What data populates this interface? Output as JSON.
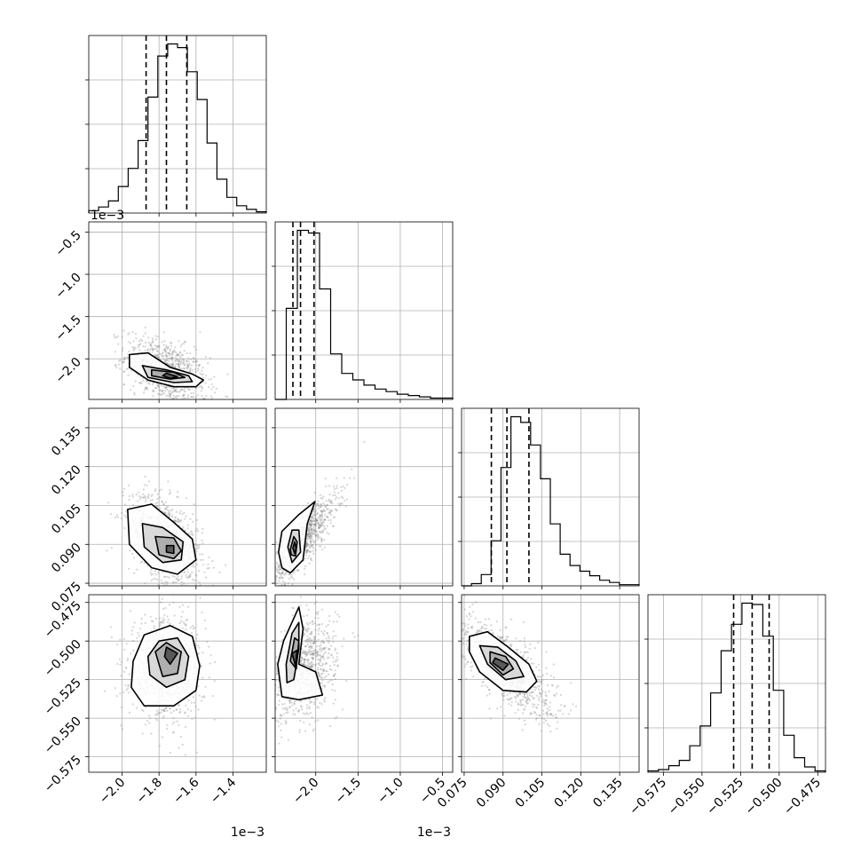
{
  "chart_data": {
    "type": "corner",
    "grid": true,
    "params": [
      {
        "ticks": [
          -2.0,
          -1.8,
          -1.6,
          -1.4
        ],
        "tick_labels": [
          "−2.0",
          "−1.8",
          "−1.6",
          "−1.4"
        ],
        "range": [
          -2.18,
          -1.22
        ],
        "offset_label": "1e−3",
        "quantiles": [
          -1.87,
          -1.76,
          -1.65
        ]
      },
      {
        "ticks": [
          -2.0,
          -1.5,
          -1.0,
          -0.5
        ],
        "tick_labels": [
          "−2.0",
          "−1.5",
          "−1.0",
          "−0.5"
        ],
        "range": [
          -2.48,
          -0.38
        ],
        "offset_label": "1e−3",
        "quantiles": [
          -2.27,
          -2.18,
          -2.02
        ]
      },
      {
        "ticks": [
          0.075,
          0.09,
          0.105,
          0.12,
          0.135
        ],
        "tick_labels": [
          "0.075",
          "0.090",
          "0.105",
          "0.120",
          "0.135"
        ],
        "range": [
          0.074,
          0.1425
        ],
        "offset_label": "",
        "quantiles": [
          0.0855,
          0.0915,
          0.1
        ]
      },
      {
        "ticks": [
          -0.575,
          -0.55,
          -0.525,
          -0.5,
          -0.475
        ],
        "tick_labels": [
          "−0.575",
          "−0.550",
          "−0.525",
          "−0.500",
          "−0.475"
        ],
        "range": [
          -0.585,
          -0.47
        ],
        "offset_label": "",
        "quantiles": [
          -0.5295,
          -0.5175,
          -0.5065
        ]
      }
    ],
    "histograms": [
      {
        "param": 0,
        "counts": [
          2,
          5,
          10,
          22,
          37,
          60,
          96,
          130,
          140,
          137,
          117,
          94,
          58,
          28,
          13,
          6,
          3,
          1
        ]
      },
      {
        "param": 1,
        "counts": [
          0,
          70,
          130,
          128,
          85,
          35,
          20,
          15,
          11,
          8,
          6,
          4,
          3,
          2,
          1,
          1
        ]
      },
      {
        "param": 2,
        "counts": [
          0,
          2,
          10,
          40,
          105,
          150,
          145,
          125,
          95,
          55,
          28,
          18,
          13,
          9,
          5,
          3,
          1,
          1
        ]
      },
      {
        "param": 3,
        "counts": [
          1,
          2,
          5,
          9,
          20,
          35,
          60,
          92,
          112,
          128,
          127,
          103,
          62,
          28,
          11,
          4,
          1
        ]
      }
    ],
    "scatter": [
      {
        "pair": [
          0,
          1
        ],
        "mean": [
          -1.76,
          -2.15
        ],
        "sd": [
          0.11,
          0.2
        ],
        "corr": -0.45
      },
      {
        "pair": [
          0,
          2
        ],
        "mean": [
          -1.76,
          0.0915
        ],
        "sd": [
          0.1,
          0.009
        ],
        "corr": -0.45
      },
      {
        "pair": [
          1,
          2
        ],
        "mean": [
          -2.15,
          0.0915
        ],
        "sd": [
          0.2,
          0.009
        ],
        "corr": 0.85
      },
      {
        "pair": [
          0,
          3
        ],
        "mean": [
          -1.76,
          -0.5175
        ],
        "sd": [
          0.1,
          0.016
        ],
        "corr": 0.0
      },
      {
        "pair": [
          1,
          3
        ],
        "mean": [
          -2.15,
          -0.5175
        ],
        "sd": [
          0.2,
          0.016
        ],
        "corr": 0.3
      },
      {
        "pair": [
          2,
          3
        ],
        "mean": [
          0.0915,
          -0.5175
        ],
        "sd": [
          0.009,
          0.016
        ],
        "corr": -0.7
      }
    ],
    "contours": [
      {
        "pair": [
          0,
          1
        ],
        "levels": [
          [
            [
              -1.96,
              -1.95
            ],
            [
              -1.86,
              -1.93
            ],
            [
              -1.74,
              -2.1
            ],
            [
              -1.62,
              -2.18
            ],
            [
              -1.56,
              -2.25
            ],
            [
              -1.6,
              -2.33
            ],
            [
              -1.72,
              -2.33
            ],
            [
              -1.86,
              -2.25
            ],
            [
              -1.96,
              -2.1
            ]
          ],
          [
            [
              -1.89,
              -2.08
            ],
            [
              -1.76,
              -2.13
            ],
            [
              -1.64,
              -2.2
            ],
            [
              -1.62,
              -2.27
            ],
            [
              -1.72,
              -2.28
            ],
            [
              -1.86,
              -2.22
            ]
          ],
          [
            [
              -1.84,
              -2.13
            ],
            [
              -1.72,
              -2.16
            ],
            [
              -1.66,
              -2.22
            ],
            [
              -1.74,
              -2.24
            ],
            [
              -1.84,
              -2.2
            ]
          ],
          [
            [
              -1.76,
              -2.17
            ],
            [
              -1.7,
              -2.21
            ],
            [
              -1.74,
              -2.23
            ],
            [
              -1.78,
              -2.2
            ]
          ]
        ]
      },
      {
        "pair": [
          0,
          2
        ],
        "levels": [
          [
            [
              -1.97,
              0.1035
            ],
            [
              -1.84,
              0.1055
            ],
            [
              -1.72,
              0.0985
            ],
            [
              -1.62,
              0.092
            ],
            [
              -1.6,
              0.084
            ],
            [
              -1.7,
              0.0785
            ],
            [
              -1.84,
              0.081
            ],
            [
              -1.96,
              0.09
            ]
          ],
          [
            [
              -1.89,
              0.098
            ],
            [
              -1.78,
              0.0965
            ],
            [
              -1.67,
              0.091
            ],
            [
              -1.68,
              0.084
            ],
            [
              -1.78,
              0.083
            ],
            [
              -1.88,
              0.089
            ]
          ],
          [
            [
              -1.82,
              0.093
            ],
            [
              -1.72,
              0.0925
            ],
            [
              -1.68,
              0.0875
            ],
            [
              -1.72,
              0.0845
            ],
            [
              -1.8,
              0.086
            ]
          ],
          [
            [
              -1.76,
              0.0895
            ],
            [
              -1.72,
              0.0895
            ],
            [
              -1.72,
              0.0865
            ],
            [
              -1.76,
              0.087
            ]
          ]
        ]
      },
      {
        "pair": [
          1,
          2
        ],
        "levels": [
          [
            [
              -2.44,
              0.087
            ],
            [
              -2.4,
              0.095
            ],
            [
              -2.2,
              0.1015
            ],
            [
              -2.01,
              0.1065
            ],
            [
              -2.1,
              0.098
            ],
            [
              -2.15,
              0.084
            ],
            [
              -2.3,
              0.079
            ],
            [
              -2.4,
              0.081
            ]
          ],
          [
            [
              -2.33,
              0.089
            ],
            [
              -2.28,
              0.0955
            ],
            [
              -2.2,
              0.0955
            ],
            [
              -2.18,
              0.087
            ],
            [
              -2.28,
              0.083
            ]
          ],
          [
            [
              -2.3,
              0.088
            ],
            [
              -2.26,
              0.093
            ],
            [
              -2.22,
              0.091
            ],
            [
              -2.24,
              0.0855
            ],
            [
              -2.29,
              0.086
            ]
          ],
          [
            [
              -2.27,
              0.0885
            ],
            [
              -2.25,
              0.091
            ],
            [
              -2.23,
              0.0885
            ],
            [
              -2.25,
              0.0865
            ]
          ]
        ]
      },
      {
        "pair": [
          0,
          3
        ],
        "levels": [
          [
            [
              -1.94,
              -0.513
            ],
            [
              -1.88,
              -0.496
            ],
            [
              -1.74,
              -0.49
            ],
            [
              -1.62,
              -0.497
            ],
            [
              -1.58,
              -0.516
            ],
            [
              -1.6,
              -0.532
            ],
            [
              -1.72,
              -0.542
            ],
            [
              -1.88,
              -0.542
            ],
            [
              -1.95,
              -0.53
            ]
          ],
          [
            [
              -1.86,
              -0.51
            ],
            [
              -1.8,
              -0.5
            ],
            [
              -1.7,
              -0.498
            ],
            [
              -1.64,
              -0.51
            ],
            [
              -1.66,
              -0.525
            ],
            [
              -1.76,
              -0.53
            ],
            [
              -1.85,
              -0.522
            ]
          ],
          [
            [
              -1.82,
              -0.507
            ],
            [
              -1.76,
              -0.501
            ],
            [
              -1.68,
              -0.507
            ],
            [
              -1.7,
              -0.521
            ],
            [
              -1.78,
              -0.523
            ]
          ],
          [
            [
              -1.76,
              -0.504
            ],
            [
              -1.7,
              -0.508
            ],
            [
              -1.74,
              -0.515
            ],
            [
              -1.77,
              -0.51
            ]
          ]
        ]
      },
      {
        "pair": [
          1,
          3
        ],
        "levels": [
          [
            [
              -2.45,
              -0.515
            ],
            [
              -2.38,
              -0.5
            ],
            [
              -2.2,
              -0.478
            ],
            [
              -2.15,
              -0.492
            ],
            [
              -2.2,
              -0.515
            ],
            [
              -2.0,
              -0.52
            ],
            [
              -1.92,
              -0.535
            ],
            [
              -2.2,
              -0.538
            ],
            [
              -2.4,
              -0.536
            ]
          ],
          [
            [
              -2.35,
              -0.515
            ],
            [
              -2.28,
              -0.495
            ],
            [
              -2.2,
              -0.488
            ],
            [
              -2.2,
              -0.505
            ],
            [
              -2.26,
              -0.525
            ],
            [
              -2.34,
              -0.527
            ]
          ],
          [
            [
              -2.3,
              -0.513
            ],
            [
              -2.25,
              -0.498
            ],
            [
              -2.2,
              -0.5
            ],
            [
              -2.23,
              -0.518
            ]
          ],
          [
            [
              -2.28,
              -0.508
            ],
            [
              -2.22,
              -0.506
            ],
            [
              -2.24,
              -0.516
            ]
          ]
        ]
      },
      {
        "pair": [
          2,
          3
        ],
        "levels": [
          [
            [
              0.077,
              -0.497
            ],
            [
              0.084,
              -0.494
            ],
            [
              0.092,
              -0.504
            ],
            [
              0.1,
              -0.515
            ],
            [
              0.103,
              -0.526
            ],
            [
              0.099,
              -0.533
            ],
            [
              0.09,
              -0.532
            ],
            [
              0.081,
              -0.52
            ],
            [
              0.077,
              -0.507
            ]
          ],
          [
            [
              0.081,
              -0.503
            ],
            [
              0.088,
              -0.504
            ],
            [
              0.095,
              -0.513
            ],
            [
              0.098,
              -0.523
            ],
            [
              0.091,
              -0.525
            ],
            [
              0.084,
              -0.515
            ]
          ],
          [
            [
              0.085,
              -0.507
            ],
            [
              0.091,
              -0.51
            ],
            [
              0.094,
              -0.518
            ],
            [
              0.09,
              -0.522
            ],
            [
              0.085,
              -0.514
            ]
          ],
          [
            [
              0.087,
              -0.511
            ],
            [
              0.092,
              -0.515
            ],
            [
              0.09,
              -0.519
            ],
            [
              0.086,
              -0.514
            ]
          ]
        ]
      }
    ]
  }
}
